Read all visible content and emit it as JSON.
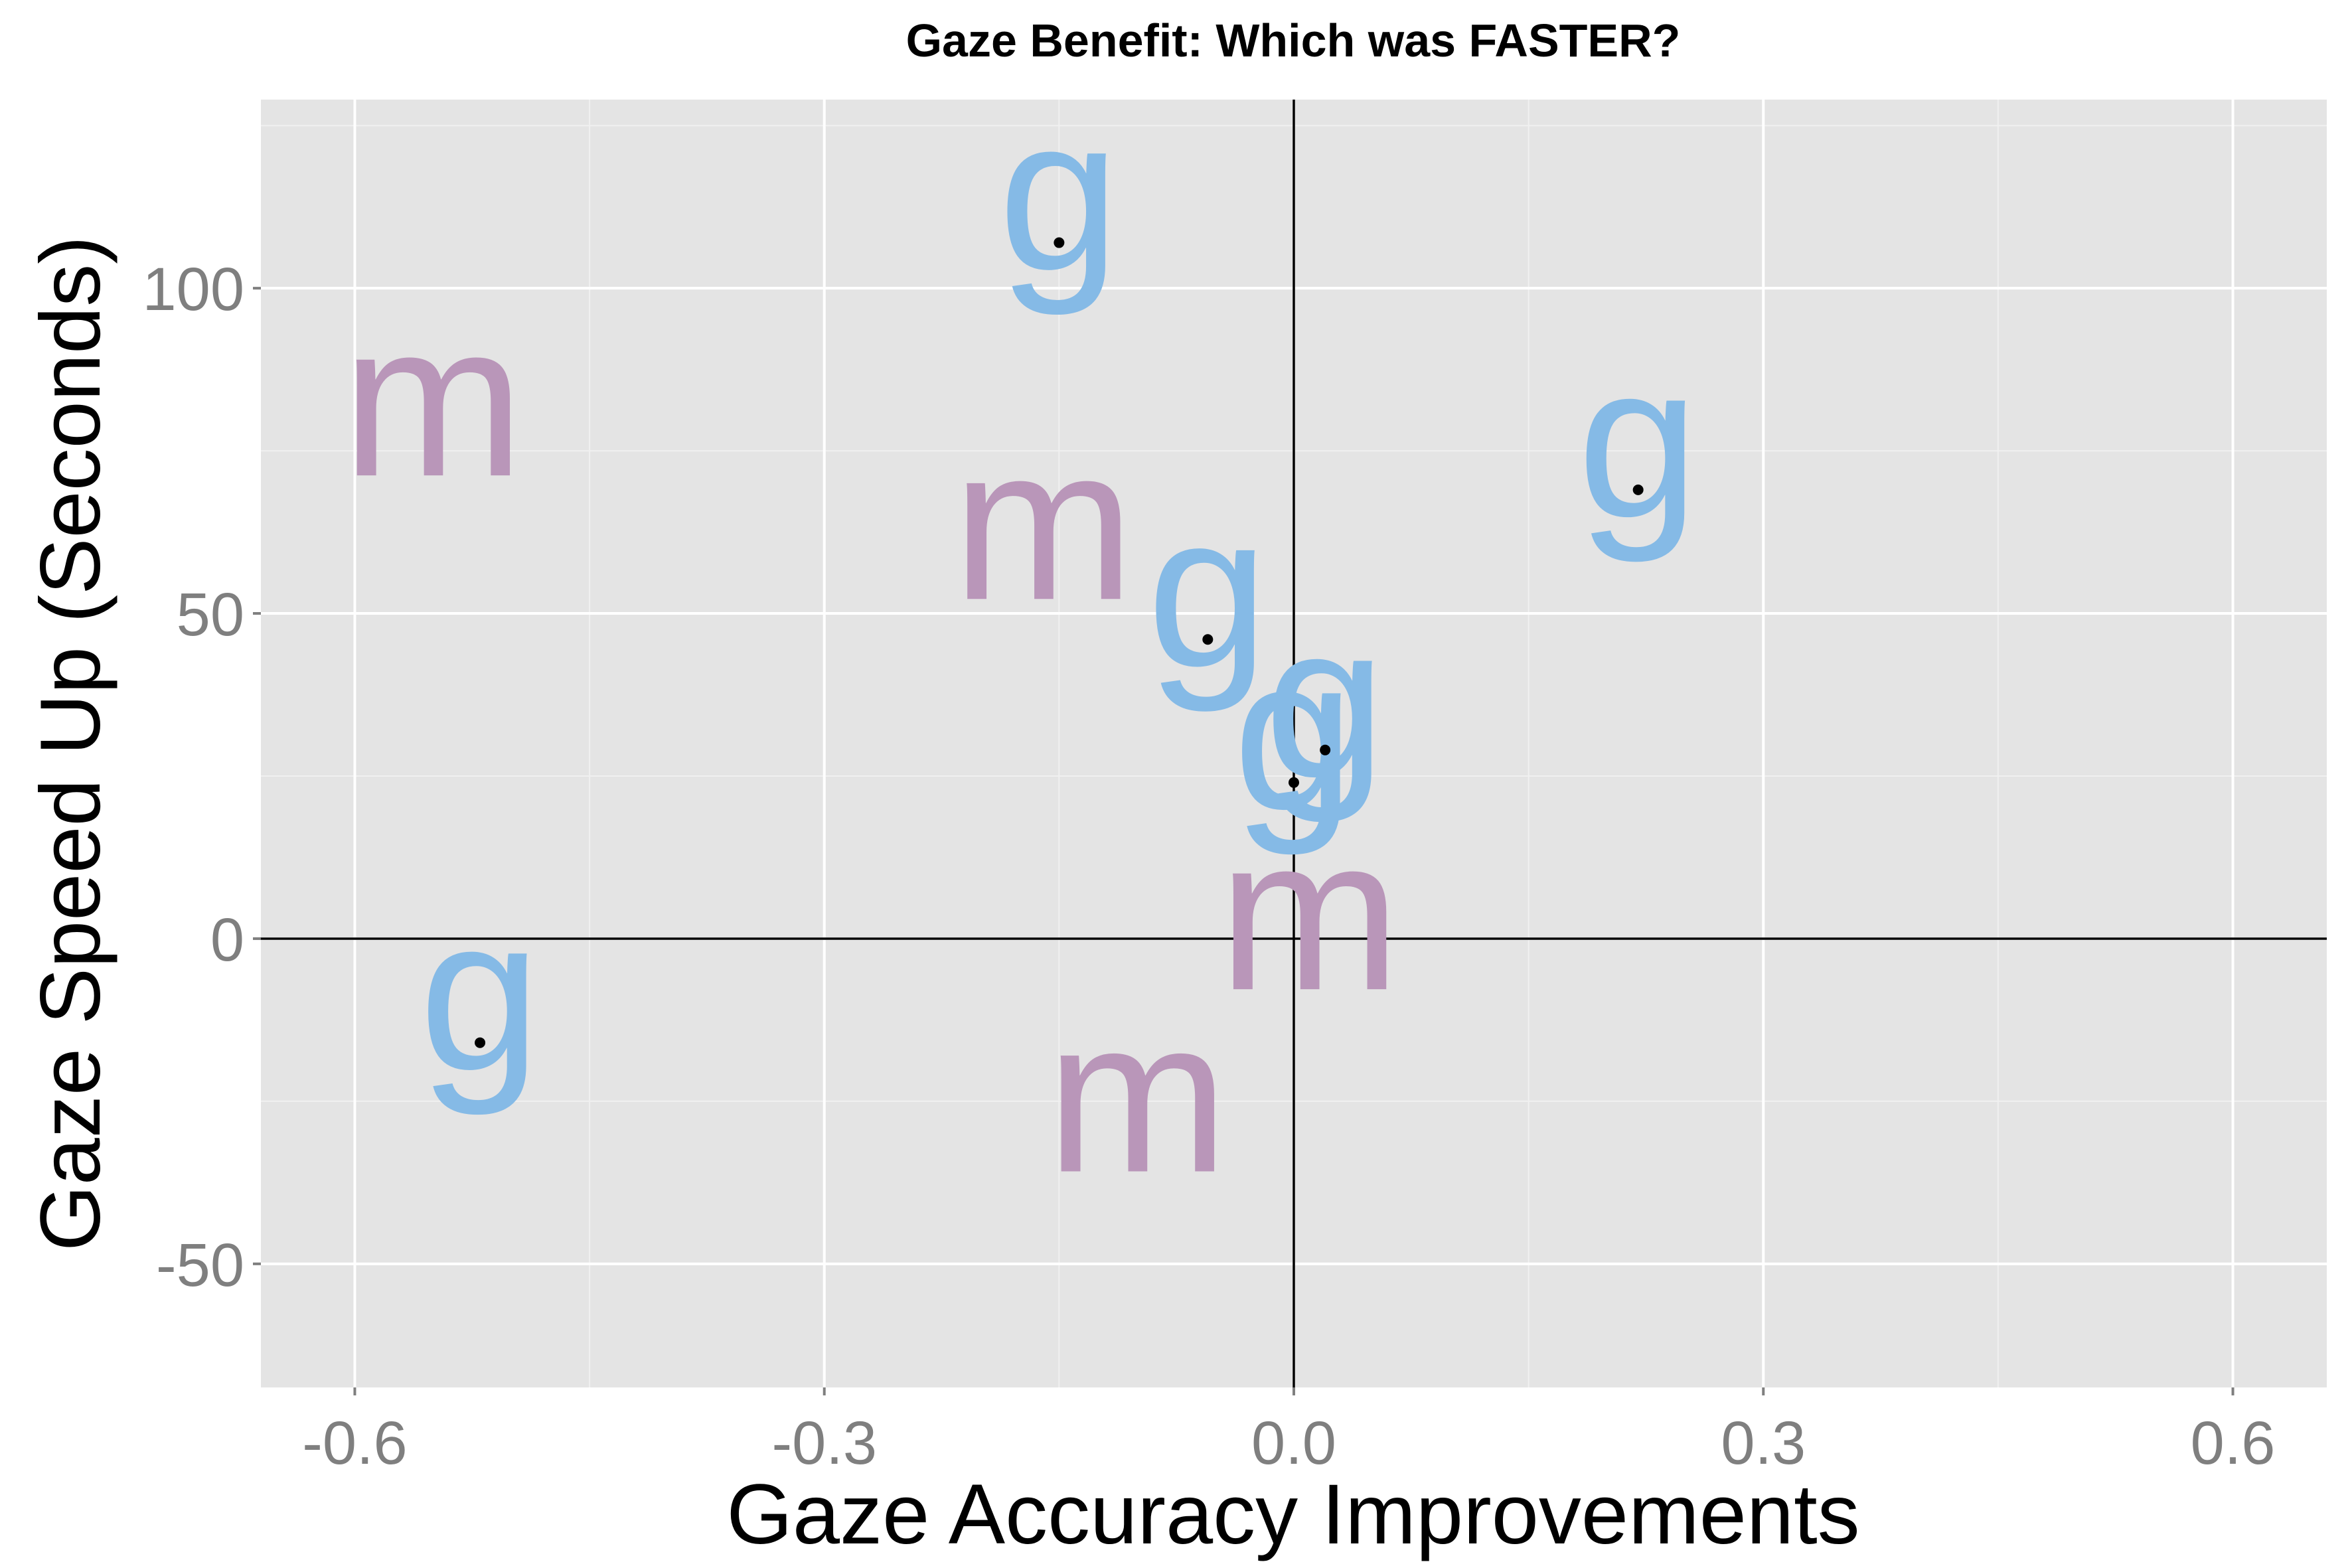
{
  "chart_data": {
    "type": "scatter",
    "title": "Gaze Benefit: Which was FASTER?",
    "xlabel": "Gaze Accuracy Improvements",
    "ylabel": "Gaze Speed Up (Seconds)",
    "xlim": [
      -0.66,
      0.66
    ],
    "ylim": [
      -69,
      129
    ],
    "x_ticks": [
      -0.6,
      -0.3,
      0.0,
      0.3,
      0.6
    ],
    "x_tick_labels": [
      "-0.6",
      "-0.3",
      "0.0",
      "0.3",
      "0.6"
    ],
    "y_ticks": [
      -50,
      0,
      50,
      100
    ],
    "y_tick_labels": [
      "-50",
      "0",
      "50",
      "100"
    ],
    "grid": true,
    "reference_lines": {
      "x": 0,
      "y": 0
    },
    "colors": {
      "g": "#85bae6",
      "m": "#b996b9",
      "panel": "#e4e4e4",
      "grid": "#ffffff",
      "dot": "#000000"
    },
    "points": [
      {
        "label": "g",
        "x": -0.15,
        "y": 107,
        "dot": true
      },
      {
        "label": "m",
        "x": -0.55,
        "y": 80,
        "dot": false
      },
      {
        "label": "m",
        "x": -0.16,
        "y": 61,
        "dot": false
      },
      {
        "label": "g",
        "x": 0.22,
        "y": 69,
        "dot": true
      },
      {
        "label": "g",
        "x": -0.055,
        "y": 46,
        "dot": true
      },
      {
        "label": "g",
        "x": 0.02,
        "y": 29,
        "dot": true
      },
      {
        "label": "g",
        "x": 0.0,
        "y": 24,
        "dot": true
      },
      {
        "label": "m",
        "x": 0.01,
        "y": 1,
        "dot": false
      },
      {
        "label": "g",
        "x": -0.52,
        "y": -16,
        "dot": true
      },
      {
        "label": "m",
        "x": -0.1,
        "y": -27,
        "dot": false
      }
    ]
  }
}
